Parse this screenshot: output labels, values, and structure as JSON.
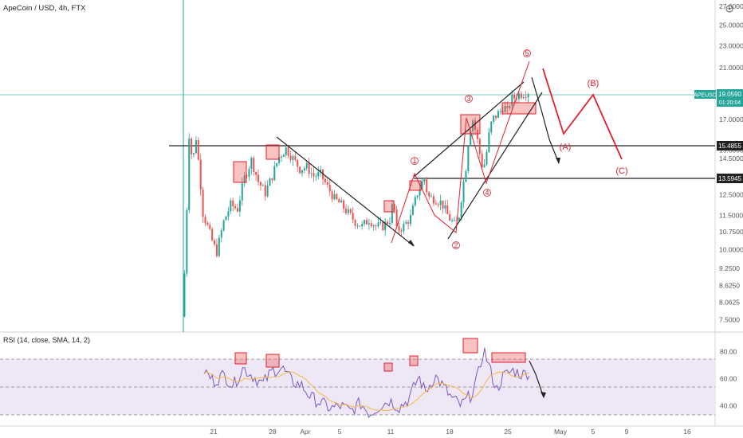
{
  "header": {
    "symbol_title": "ApeCoin / USD, 4h, FTX"
  },
  "rsi_header": "RSI (14, close, SMA, 14, 2)",
  "price_tags": {
    "ticker": "APEUSD",
    "last_price": "19.0590",
    "countdown": "01:20:04",
    "level_high": "15.4855",
    "level_low": "13.5945"
  },
  "colors": {
    "up": "#26a69a",
    "down": "#ef5350",
    "annotation_red": "#e0202e",
    "rsi_line": "#7e57c2",
    "rsi_ma": "#f5b945",
    "rsi_band": "#ede7f6",
    "axis_text": "#555555"
  },
  "icons": {
    "settings": "gear-icon"
  },
  "chart_data": [
    {
      "type": "candlestick",
      "title": "ApeCoin / USD, 4h, FTX",
      "y_scale": "log",
      "ylim": [
        7.3,
        27.0
      ],
      "y_tick_labels": [
        "27.0000",
        "25.0000",
        "23.0000",
        "21.0000",
        "19.0000",
        "17.0000",
        "15.0000",
        "14.5000",
        "13.5000",
        "12.5000",
        "11.5000",
        "10.7500",
        "10.0000",
        "9.2500",
        "8.6250",
        "8.0625",
        "7.5000"
      ],
      "x_tick_labels": [
        "21",
        "28",
        "Apr",
        "5",
        "11",
        "18",
        "25",
        "May",
        "5",
        "9",
        "16"
      ],
      "price_path": [
        [
          0.0,
          7.6
        ],
        [
          0.01,
          9.8
        ],
        [
          0.02,
          16.0
        ],
        [
          0.03,
          14.2
        ],
        [
          0.04,
          15.8
        ],
        [
          0.06,
          11.6
        ],
        [
          0.09,
          10.2
        ],
        [
          0.1,
          9.9
        ],
        [
          0.12,
          11.2
        ],
        [
          0.14,
          12.0
        ],
        [
          0.16,
          11.8
        ],
        [
          0.18,
          13.4
        ],
        [
          0.2,
          14.4
        ],
        [
          0.22,
          13.2
        ],
        [
          0.24,
          12.6
        ],
        [
          0.26,
          13.5
        ],
        [
          0.28,
          14.6
        ],
        [
          0.3,
          15.1
        ],
        [
          0.32,
          14.5
        ],
        [
          0.34,
          13.9
        ],
        [
          0.36,
          14.0
        ],
        [
          0.38,
          13.5
        ],
        [
          0.4,
          13.6
        ],
        [
          0.42,
          12.9
        ],
        [
          0.44,
          12.3
        ],
        [
          0.46,
          12.0
        ],
        [
          0.48,
          11.6
        ],
        [
          0.5,
          11.2
        ],
        [
          0.52,
          11.0
        ],
        [
          0.54,
          11.3
        ],
        [
          0.56,
          11.0
        ],
        [
          0.58,
          11.0
        ],
        [
          0.6,
          11.3
        ],
        [
          0.61,
          12.2
        ],
        [
          0.62,
          10.8
        ],
        [
          0.64,
          11.0
        ],
        [
          0.66,
          11.4
        ],
        [
          0.68,
          12.6
        ],
        [
          0.7,
          13.4
        ],
        [
          0.71,
          12.4
        ],
        [
          0.73,
          12.3
        ],
        [
          0.75,
          12.1
        ],
        [
          0.77,
          11.4
        ],
        [
          0.79,
          11.0
        ],
        [
          0.8,
          11.5
        ],
        [
          0.82,
          14.0
        ],
        [
          0.83,
          16.2
        ],
        [
          0.84,
          17.0
        ],
        [
          0.85,
          16.0
        ],
        [
          0.86,
          14.8
        ],
        [
          0.87,
          13.8
        ],
        [
          0.88,
          14.9
        ],
        [
          0.89,
          16.5
        ],
        [
          0.9,
          17.1
        ],
        [
          0.92,
          17.6
        ],
        [
          0.93,
          18.0
        ],
        [
          0.94,
          17.5
        ],
        [
          0.95,
          18.5
        ],
        [
          0.96,
          18.6
        ],
        [
          0.97,
          18.8
        ],
        [
          1.0,
          19.06
        ]
      ],
      "horizontal_levels": [
        15.4855,
        13.5945
      ],
      "last_price": 19.059,
      "wave_labels": [
        "1",
        "2",
        "3",
        "4",
        "5",
        "(A)",
        "(B)",
        "(C)"
      ]
    },
    {
      "type": "line",
      "title": "RSI (14, close, SMA, 14, 2)",
      "ylim": [
        28,
        88
      ],
      "y_tick_labels": [
        "80.00",
        "60.00",
        "40.00"
      ],
      "band": [
        30,
        70
      ],
      "rsi_path": [
        [
          0.0,
          66
        ],
        [
          0.03,
          58
        ],
        [
          0.06,
          63
        ],
        [
          0.09,
          55
        ],
        [
          0.12,
          68
        ],
        [
          0.15,
          62
        ],
        [
          0.18,
          56
        ],
        [
          0.21,
          66
        ],
        [
          0.24,
          68
        ],
        [
          0.27,
          58
        ],
        [
          0.3,
          55
        ],
        [
          0.33,
          46
        ],
        [
          0.36,
          42
        ],
        [
          0.39,
          38
        ],
        [
          0.42,
          40
        ],
        [
          0.45,
          36
        ],
        [
          0.48,
          42
        ],
        [
          0.51,
          34
        ],
        [
          0.54,
          40
        ],
        [
          0.57,
          44
        ],
        [
          0.6,
          39
        ],
        [
          0.63,
          45
        ],
        [
          0.66,
          62
        ],
        [
          0.68,
          50
        ],
        [
          0.71,
          62
        ],
        [
          0.73,
          56
        ],
        [
          0.76,
          46
        ],
        [
          0.79,
          40
        ],
        [
          0.82,
          48
        ],
        [
          0.84,
          60
        ],
        [
          0.86,
          82
        ],
        [
          0.88,
          66
        ],
        [
          0.9,
          52
        ],
        [
          0.92,
          62
        ],
        [
          0.95,
          66
        ],
        [
          0.98,
          63
        ],
        [
          1.0,
          65
        ]
      ]
    }
  ]
}
